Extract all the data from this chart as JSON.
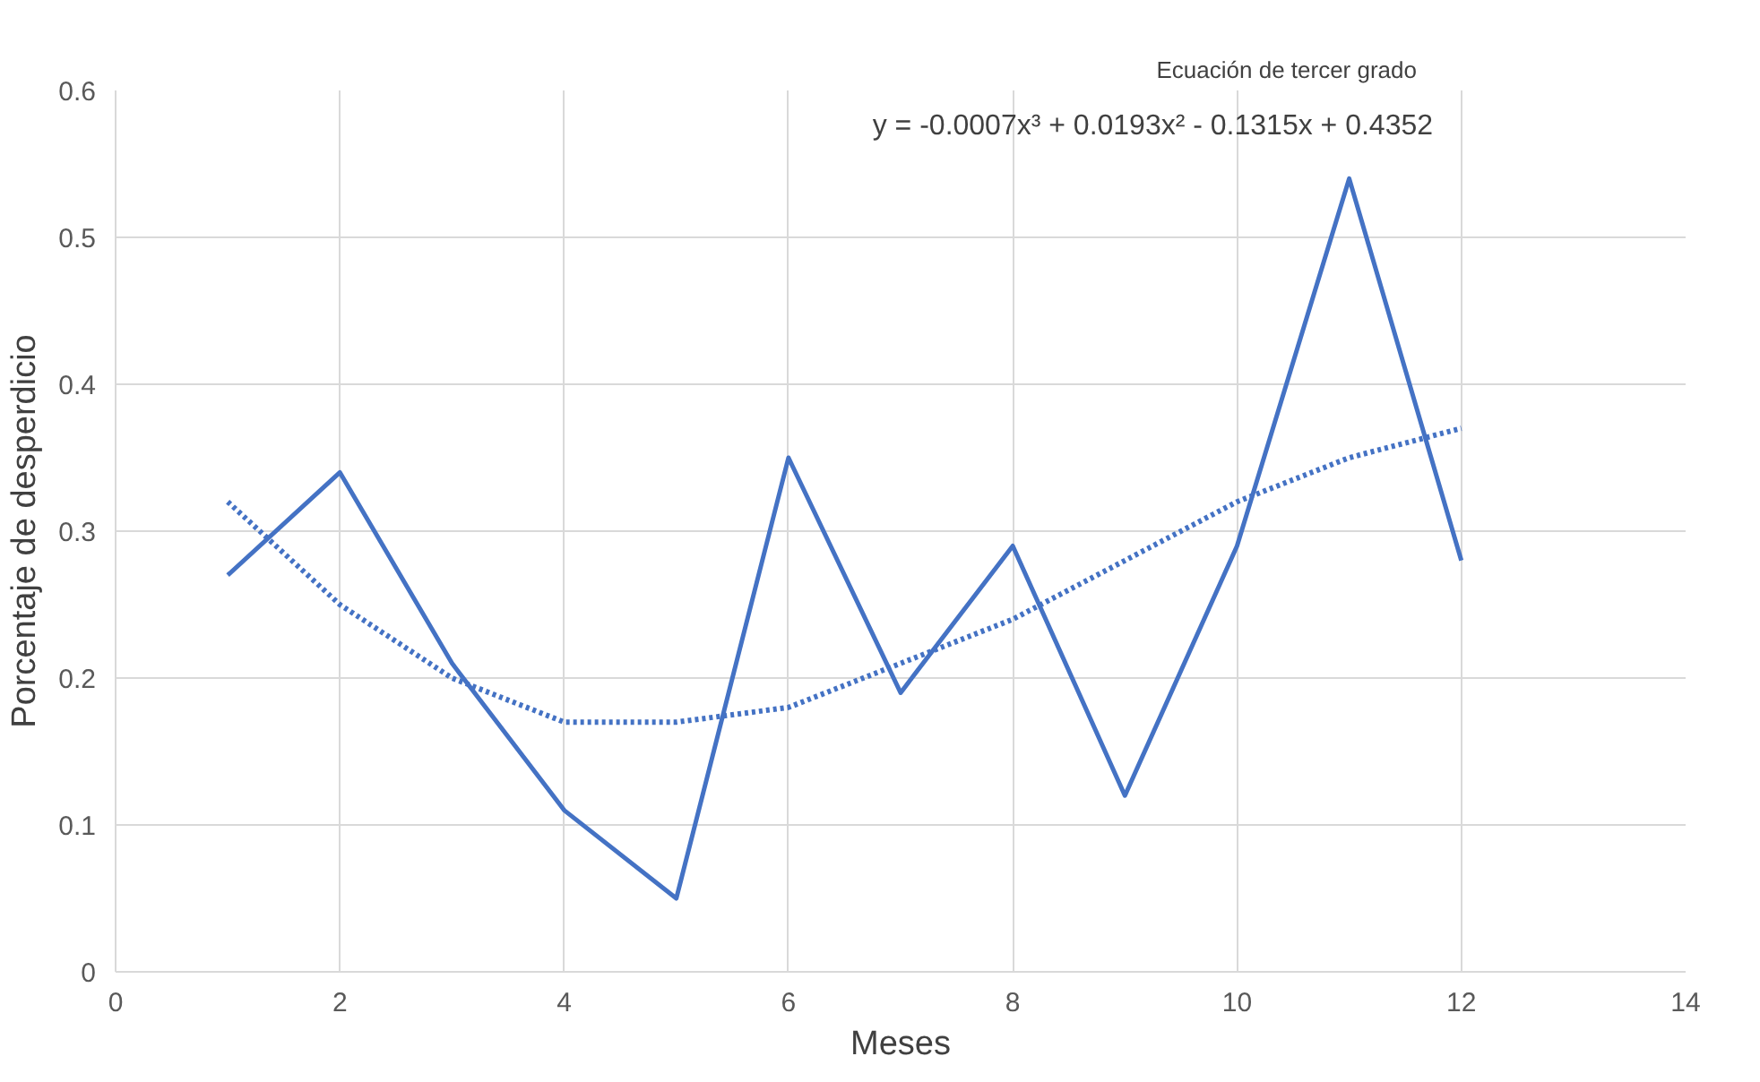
{
  "chart_data": {
    "type": "line",
    "xlabel": "Meses",
    "ylabel": "Porcentaje de desperdicio",
    "x": [
      1,
      2,
      3,
      4,
      5,
      6,
      7,
      8,
      9,
      10,
      11,
      12
    ],
    "series": [
      {
        "color": "#4472c4",
        "values": [
          0.27,
          0.34,
          0.21,
          0.11,
          0.05,
          0.35,
          0.19,
          0.29,
          0.12,
          0.29,
          0.54,
          0.28
        ],
        "line_style": "solid"
      },
      {
        "type": "line",
        "color": "#4472c4",
        "x": [
          1,
          2,
          3,
          4,
          5,
          6,
          7,
          8,
          9,
          10,
          11,
          12
        ],
        "values": [
          0.32,
          0.25,
          0.2,
          0.17,
          0.17,
          0.18,
          0.21,
          0.24,
          0.28,
          0.32,
          0.35,
          0.37
        ],
        "line_style": "dotted"
      }
    ],
    "annotations": [
      "Ecuación de tercer grado",
      "y = -0.0007x³ + 0.0193x² - 0.1315x + 0.4352"
    ],
    "xlim": [
      0,
      14
    ],
    "xticks": [
      0,
      2,
      4,
      6,
      8,
      10,
      12,
      14
    ],
    "ylim": [
      0,
      0.6
    ],
    "yticks": [
      0,
      0.1,
      0.2,
      0.3,
      0.4,
      0.5,
      0.6
    ],
    "grid": true,
    "marker": "none"
  }
}
